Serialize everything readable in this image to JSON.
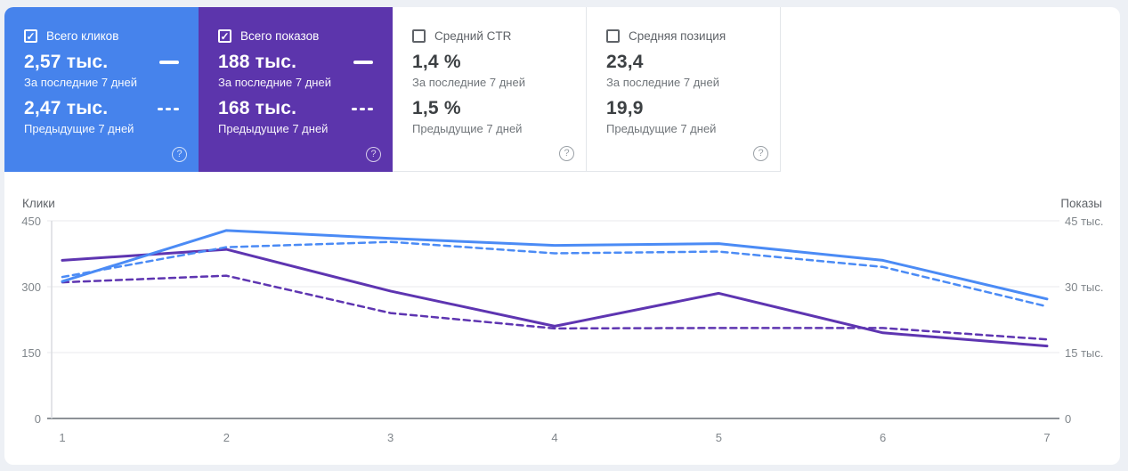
{
  "icons": {
    "check": "✓",
    "help": "?"
  },
  "cards": [
    {
      "label": "Всего кликов",
      "checked": true,
      "bg": "#4683ec",
      "value_current": "2,57 тыс.",
      "current_caption": "За последние 7 дней",
      "value_previous": "2,47 тыс.",
      "previous_caption": "Предыдущие 7 дней"
    },
    {
      "label": "Всего показов",
      "checked": true,
      "bg": "#5c35ac",
      "value_current": "188 тыс.",
      "current_caption": "За последние 7 дней",
      "value_previous": "168 тыс.",
      "previous_caption": "Предыдущие 7 дней"
    },
    {
      "label": "Средний CTR",
      "checked": false,
      "bg": "#ffffff",
      "value_current": "1,4 %",
      "current_caption": "За последние 7 дней",
      "value_previous": "1,5 %",
      "previous_caption": "Предыдущие 7 дней"
    },
    {
      "label": "Средняя позиция",
      "checked": false,
      "bg": "#ffffff",
      "value_current": "23,4",
      "current_caption": "За последние 7 дней",
      "value_previous": "19,9",
      "previous_caption": "Предыдущие 7 дней"
    }
  ],
  "chart_data": {
    "type": "line",
    "x": [
      "1",
      "2",
      "3",
      "4",
      "5",
      "6",
      "7"
    ],
    "grid": true,
    "legend": "none",
    "left_axis": {
      "title": "Клики",
      "range": [
        0,
        450
      ],
      "ticks_top_to_bottom": [
        "450",
        "300",
        "150",
        "0"
      ]
    },
    "right_axis": {
      "title": "Показы",
      "range": [
        0,
        45000
      ],
      "ticks_top_to_bottom": [
        "45 тыс.",
        "30 тыс.",
        "15 тыс.",
        "0"
      ]
    },
    "series": [
      {
        "name": "Клики — за последние 7 дней",
        "axis": "left",
        "style": "solid",
        "color": "#4b8bf5",
        "values": [
          312,
          428,
          410,
          394,
          398,
          360,
          272
        ]
      },
      {
        "name": "Клики — предыдущие 7 дней",
        "axis": "left",
        "style": "dashed",
        "color": "#4b8bf5",
        "values": [
          322,
          390,
          402,
          376,
          380,
          345,
          255
        ]
      },
      {
        "name": "Показы — за последние 7 дней",
        "axis": "right",
        "style": "solid",
        "color": "#5e35b1",
        "values": [
          36000,
          38500,
          29000,
          21000,
          28500,
          19500,
          16500
        ]
      },
      {
        "name": "Показы — предыдущие 7 дней",
        "axis": "right",
        "style": "dashed",
        "color": "#5e35b1",
        "values": [
          31000,
          32500,
          24000,
          20500,
          20600,
          20600,
          18000
        ]
      }
    ]
  }
}
